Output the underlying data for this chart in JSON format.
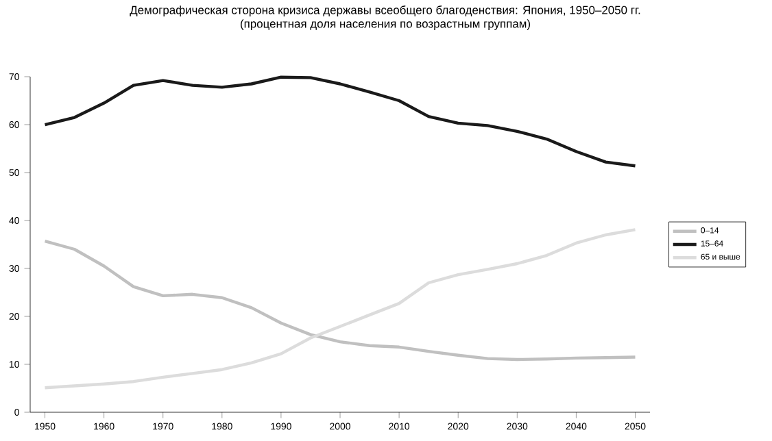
{
  "chart_data": {
    "type": "line",
    "title": "Демографическая сторона кризиса державы всеобщего благоденствия: Япония, 1950–2050 гг.",
    "subtitle": "(процентная доля населения по возрастным группам)",
    "x": [
      1950,
      1955,
      1960,
      1965,
      1970,
      1975,
      1980,
      1985,
      1990,
      1995,
      2000,
      2005,
      2010,
      2015,
      2020,
      2025,
      2030,
      2035,
      2040,
      2045,
      2050
    ],
    "xlim": [
      1947.5,
      2052.5
    ],
    "xticks": [
      1950,
      1960,
      1970,
      1980,
      1990,
      2000,
      2010,
      2020,
      2030,
      2040,
      2050
    ],
    "ylim": [
      0,
      70
    ],
    "yticks": [
      0,
      10,
      20,
      30,
      40,
      50,
      60,
      70
    ],
    "grid": false,
    "legend": "right",
    "marker": "none",
    "line_style": "solid",
    "series": [
      {
        "name": "0–14",
        "color": "#c0c0c0",
        "values": [
          35.7,
          34,
          30.5,
          26.2,
          24.3,
          24.6,
          23.9,
          21.8,
          18.6,
          16.2,
          14.7,
          13.9,
          13.6,
          12.7,
          11.9,
          11.2,
          11.0,
          11.1,
          11.3,
          11.4,
          11.5
        ]
      },
      {
        "name": "15–64",
        "color": "#1a1a1a",
        "values": [
          60,
          61.5,
          64.5,
          68.2,
          69.2,
          68.2,
          67.8,
          68.5,
          69.9,
          69.8,
          68.5,
          66.8,
          65.0,
          61.7,
          60.3,
          59.8,
          58.6,
          57.0,
          54.4,
          52.2,
          51.4
        ]
      },
      {
        "name": "65 и выше",
        "color": "#dcdcdc",
        "values": [
          5.1,
          5.5,
          5.9,
          6.4,
          7.3,
          8.1,
          8.9,
          10.3,
          12.2,
          15.5,
          17.9,
          20.3,
          22.7,
          27.0,
          28.7,
          29.8,
          31.0,
          32.7,
          35.3,
          37.0,
          38.1
        ]
      }
    ]
  }
}
